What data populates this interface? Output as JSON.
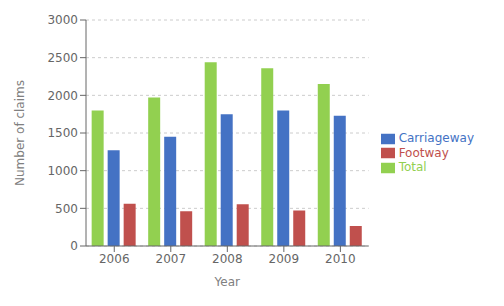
{
  "chart_data": {
    "type": "bar",
    "categories": [
      "2006",
      "2007",
      "2008",
      "2009",
      "2010"
    ],
    "series": [
      {
        "name": "Total",
        "color": "#92d050",
        "values": [
          1800,
          1970,
          2440,
          2360,
          2150
        ]
      },
      {
        "name": "Carriageway",
        "color": "#4472c4",
        "values": [
          1270,
          1450,
          1750,
          1800,
          1730
        ]
      },
      {
        "name": "Footway",
        "color": "#c0504d",
        "values": [
          560,
          460,
          555,
          470,
          265
        ]
      }
    ],
    "xlabel": "Year",
    "ylabel": "Number of claims",
    "ylim": [
      0,
      3000
    ],
    "yticks": [
      0,
      500,
      1000,
      1500,
      2000,
      2500,
      3000
    ],
    "grid": true,
    "legend": "right"
  }
}
